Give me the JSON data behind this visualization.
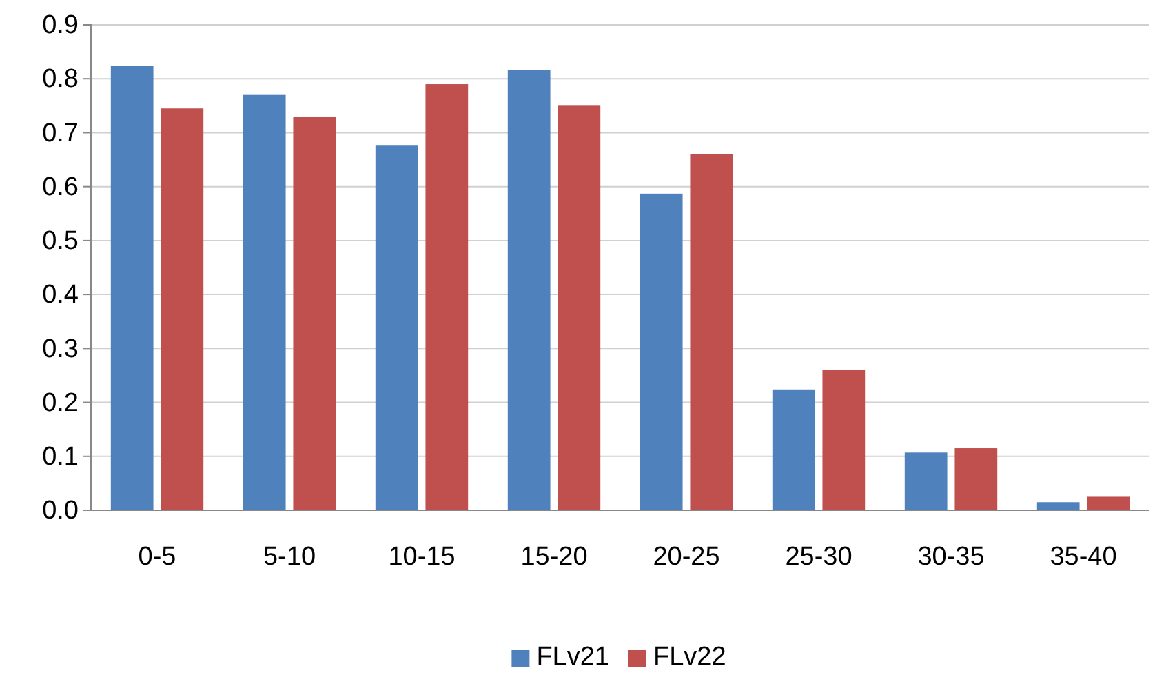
{
  "chart_data": {
    "type": "bar",
    "categories": [
      "0-5",
      "5-10",
      "10-15",
      "15-20",
      "20-25",
      "25-30",
      "30-35",
      "35-40"
    ],
    "series": [
      {
        "name": "FLv21",
        "color": "#4f81bd",
        "values": [
          0.824,
          0.77,
          0.676,
          0.816,
          0.587,
          0.224,
          0.107,
          0.015
        ]
      },
      {
        "name": "FLv22",
        "color": "#c0504d",
        "values": [
          0.745,
          0.73,
          0.79,
          0.75,
          0.66,
          0.26,
          0.115,
          0.025
        ]
      }
    ],
    "ylim": [
      0,
      0.9
    ],
    "yticks": [
      {
        "value": 0,
        "label": "0.0"
      },
      {
        "value": 0.1,
        "label": "0.1"
      },
      {
        "value": 0.2,
        "label": "0.2"
      },
      {
        "value": 0.3,
        "label": "0.3"
      },
      {
        "value": 0.4,
        "label": "0.4"
      },
      {
        "value": 0.5,
        "label": "0.5"
      },
      {
        "value": 0.6,
        "label": "0.6"
      },
      {
        "value": 0.7,
        "label": "0.7"
      },
      {
        "value": 0.8,
        "label": "0.8"
      },
      {
        "value": 0.9,
        "label": "0.9"
      }
    ],
    "grid": "y",
    "legend": "bottom"
  }
}
